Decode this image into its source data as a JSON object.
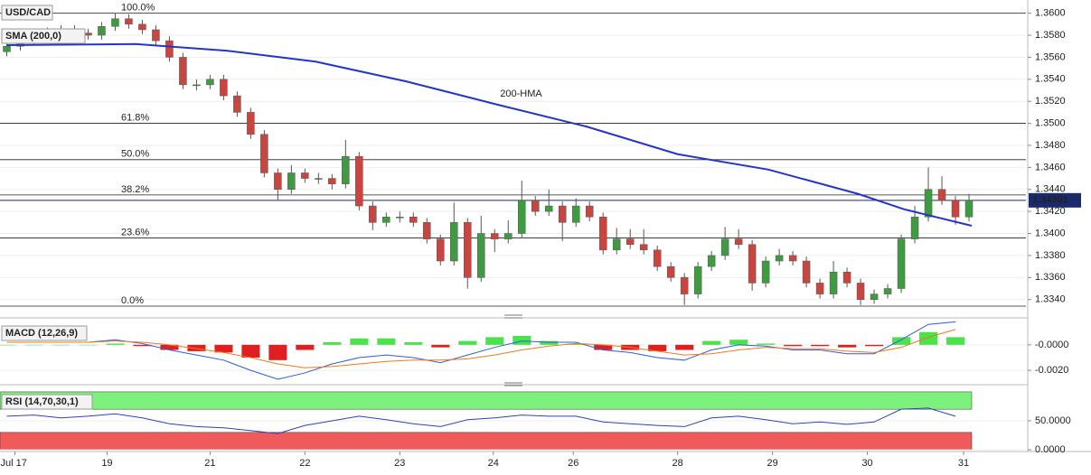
{
  "chart_data": [
    {
      "type": "candlestick",
      "symbol": "USD/CAD",
      "indicator": "SMA (200,0)",
      "up_color": "#3f9b3f",
      "down_color": "#c8463f",
      "ylim": [
        1.3325,
        1.3612
      ],
      "yticks": [
        {
          "value": 1.334,
          "label": "1.3340"
        },
        {
          "value": 1.336,
          "label": "1.3360"
        },
        {
          "value": 1.338,
          "label": "1.3380"
        },
        {
          "value": 1.34,
          "label": "1.3400"
        },
        {
          "value": 1.342,
          "label": "1.3420"
        },
        {
          "value": 1.344,
          "label": "1.3440"
        },
        {
          "value": 1.346,
          "label": "1.3460"
        },
        {
          "value": 1.348,
          "label": "1.3480"
        },
        {
          "value": 1.35,
          "label": "1.3500"
        },
        {
          "value": 1.352,
          "label": "1.3520"
        },
        {
          "value": 1.354,
          "label": "1.3540"
        },
        {
          "value": 1.356,
          "label": "1.3560"
        },
        {
          "value": 1.358,
          "label": "1.3580"
        },
        {
          "value": 1.36,
          "label": "1.3600"
        }
      ],
      "xlim": [
        -0.5,
        75.2
      ],
      "xticks": [
        {
          "value": 0.6,
          "label": "Jul 17"
        },
        {
          "value": 7.4,
          "label": "19"
        },
        {
          "value": 15,
          "label": "21"
        },
        {
          "value": 22,
          "label": "22"
        },
        {
          "value": 29,
          "label": "23"
        },
        {
          "value": 35.9,
          "label": "24"
        },
        {
          "value": 41.8,
          "label": "26"
        },
        {
          "value": 49.5,
          "label": "28"
        },
        {
          "value": 56.5,
          "label": "29"
        },
        {
          "value": 63.5,
          "label": "30"
        },
        {
          "value": 70.6,
          "label": "31"
        }
      ],
      "last": 1.34301,
      "fib_levels": [
        {
          "label": "100.0%",
          "price": 1.36
        },
        {
          "label": "61.8%",
          "price": 1.35
        },
        {
          "label": "50.0%",
          "price": 1.3467
        },
        {
          "label": "38.2%",
          "price": 1.3435
        },
        {
          "label": "23.6%",
          "price": 1.3396
        },
        {
          "label": "0.0%",
          "price": 1.3334
        }
      ],
      "hma": {
        "name": "200-HMA",
        "color": "#2436c8",
        "x": [
          0,
          9.5,
          16.2,
          22.8,
          29.5,
          36.2,
          42.8,
          49.5,
          56.2,
          62.8,
          66.2,
          71.2
        ],
        "values": [
          1.3571,
          1.3572,
          1.3566,
          1.3556,
          1.3538,
          1.3517,
          1.3497,
          1.3472,
          1.3458,
          1.3436,
          1.3422,
          1.3407
        ]
      },
      "candles": [
        [
          1.3565,
          1.3574,
          1.3561,
          1.357
        ],
        [
          1.357,
          1.3579,
          1.3566,
          1.3575
        ],
        [
          1.3575,
          1.3584,
          1.3571,
          1.358
        ],
        [
          1.358,
          1.3587,
          1.3576,
          1.3583
        ],
        [
          1.3583,
          1.3589,
          1.3579,
          1.3585
        ],
        [
          1.3585,
          1.3589,
          1.3578,
          1.3582
        ],
        [
          1.3582,
          1.3586,
          1.3576,
          1.358
        ],
        [
          1.358,
          1.3592,
          1.3576,
          1.3588
        ],
        [
          1.3588,
          1.36,
          1.3584,
          1.3595
        ],
        [
          1.3595,
          1.3599,
          1.3586,
          1.359
        ],
        [
          1.359,
          1.3594,
          1.3581,
          1.3585
        ],
        [
          1.3585,
          1.3589,
          1.3571,
          1.3575
        ],
        [
          1.3575,
          1.3579,
          1.3556,
          1.356
        ],
        [
          1.356,
          1.3564,
          1.3531,
          1.3535
        ],
        [
          1.3535,
          1.354,
          1.353,
          1.3535
        ],
        [
          1.3535,
          1.3544,
          1.3531,
          1.354
        ],
        [
          1.354,
          1.3544,
          1.3521,
          1.3525
        ],
        [
          1.3525,
          1.3529,
          1.3506,
          1.351
        ],
        [
          1.351,
          1.3514,
          1.3486,
          1.349
        ],
        [
          1.349,
          1.3494,
          1.3451,
          1.3455
        ],
        [
          1.3455,
          1.3459,
          1.343,
          1.344
        ],
        [
          1.344,
          1.3462,
          1.3436,
          1.3455
        ],
        [
          1.3455,
          1.3459,
          1.3446,
          1.345
        ],
        [
          1.345,
          1.3455,
          1.3445,
          1.345
        ],
        [
          1.345,
          1.3454,
          1.344,
          1.3445
        ],
        [
          1.3445,
          1.3485,
          1.3441,
          1.347
        ],
        [
          1.347,
          1.3474,
          1.3421,
          1.3425
        ],
        [
          1.3425,
          1.3429,
          1.3403,
          1.341
        ],
        [
          1.341,
          1.3419,
          1.3406,
          1.3415
        ],
        [
          1.3415,
          1.342,
          1.341,
          1.3415
        ],
        [
          1.3415,
          1.3419,
          1.3406,
          1.341
        ],
        [
          1.341,
          1.3414,
          1.3391,
          1.3395
        ],
        [
          1.3395,
          1.3399,
          1.3371,
          1.3375
        ],
        [
          1.3375,
          1.3428,
          1.3371,
          1.341
        ],
        [
          1.341,
          1.3414,
          1.335,
          1.336
        ],
        [
          1.336,
          1.3416,
          1.3356,
          1.34
        ],
        [
          1.34,
          1.3404,
          1.3383,
          1.3395
        ],
        [
          1.3395,
          1.3412,
          1.3391,
          1.34
        ],
        [
          1.34,
          1.3448,
          1.3396,
          1.343
        ],
        [
          1.343,
          1.3434,
          1.3416,
          1.342
        ],
        [
          1.342,
          1.344,
          1.3416,
          1.3425
        ],
        [
          1.3425,
          1.3429,
          1.3393,
          1.341
        ],
        [
          1.341,
          1.3432,
          1.3406,
          1.3425
        ],
        [
          1.3425,
          1.3429,
          1.3411,
          1.3415
        ],
        [
          1.3415,
          1.3419,
          1.3381,
          1.3385
        ],
        [
          1.3385,
          1.3405,
          1.3381,
          1.3395
        ],
        [
          1.3395,
          1.3404,
          1.3386,
          1.339
        ],
        [
          1.339,
          1.3404,
          1.3381,
          1.3385
        ],
        [
          1.3385,
          1.3389,
          1.3366,
          1.337
        ],
        [
          1.337,
          1.3374,
          1.3356,
          1.336
        ],
        [
          1.336,
          1.3364,
          1.3335,
          1.3345
        ],
        [
          1.3345,
          1.3374,
          1.3341,
          1.337
        ],
        [
          1.337,
          1.3384,
          1.3366,
          1.338
        ],
        [
          1.338,
          1.3406,
          1.3376,
          1.3395
        ],
        [
          1.3395,
          1.3404,
          1.3386,
          1.339
        ],
        [
          1.339,
          1.3394,
          1.3348,
          1.3355
        ],
        [
          1.3355,
          1.3379,
          1.3351,
          1.3375
        ],
        [
          1.3375,
          1.3386,
          1.3371,
          1.338
        ],
        [
          1.338,
          1.3384,
          1.3371,
          1.3375
        ],
        [
          1.3375,
          1.3379,
          1.3351,
          1.3355
        ],
        [
          1.3355,
          1.3359,
          1.3341,
          1.3345
        ],
        [
          1.3345,
          1.3375,
          1.3341,
          1.3365
        ],
        [
          1.3365,
          1.3369,
          1.3351,
          1.3355
        ],
        [
          1.3355,
          1.3359,
          1.3335,
          1.334
        ],
        [
          1.334,
          1.3349,
          1.3336,
          1.3345
        ],
        [
          1.3345,
          1.3354,
          1.3341,
          1.335
        ],
        [
          1.335,
          1.3399,
          1.3346,
          1.3395
        ],
        [
          1.3395,
          1.3425,
          1.3391,
          1.3415
        ],
        [
          1.3415,
          1.346,
          1.3411,
          1.344
        ],
        [
          1.344,
          1.3452,
          1.3426,
          1.343
        ],
        [
          1.343,
          1.3434,
          1.3408,
          1.3415
        ],
        [
          1.3415,
          1.3436,
          1.3411,
          1.343
        ]
      ]
    },
    {
      "type": "macd",
      "label": "MACD (12,26,9)",
      "macd_color": "#2f5be0",
      "signal_color": "#f07a1a",
      "up_color": "#4be34b",
      "down_color": "#e02020",
      "ylim": [
        -0.0027,
        0.0019
      ],
      "yticks": [
        {
          "value": 0,
          "label": "-0.0000"
        },
        {
          "value": -0.002,
          "label": "-0.0020"
        }
      ],
      "x": [
        0,
        2,
        4,
        6,
        8,
        10,
        12,
        14,
        16,
        18,
        20,
        22,
        24,
        26,
        28,
        30,
        32,
        34,
        36,
        38,
        40,
        42,
        44,
        46,
        48,
        50,
        52,
        54,
        56,
        58,
        60,
        62,
        64,
        66,
        68,
        70
      ],
      "macd": [
        0.0002,
        0.0002,
        0.0002,
        0.0002,
        0.0004,
        0.0001,
        -0.0004,
        -0.0008,
        -0.0012,
        -0.002,
        -0.0027,
        -0.0022,
        -0.0015,
        -0.001,
        -0.0008,
        -0.001,
        -0.0014,
        -0.0008,
        -0.0002,
        0.0003,
        0.0002,
        0.0002,
        -0.0004,
        -0.0006,
        -0.001,
        -0.0012,
        -0.0004,
        0,
        -0.0001,
        -0.0004,
        -0.0004,
        -0.0007,
        -0.0007,
        0.0004,
        0.0016,
        0.0018
      ],
      "signal": [
        0.0002,
        0.0002,
        0.0002,
        0.0002,
        0.0003,
        0.0002,
        0,
        -0.0003,
        -0.0006,
        -0.001,
        -0.0015,
        -0.0018,
        -0.0017,
        -0.0015,
        -0.0013,
        -0.0012,
        -0.0012,
        -0.0011,
        -0.0008,
        -0.0004,
        -0.0001,
        0.0001,
        0,
        -0.0002,
        -0.0005,
        -0.0008,
        -0.0007,
        -0.0004,
        -0.0002,
        -0.0003,
        -0.0003,
        -0.0005,
        -0.0006,
        -0.0002,
        0.0006,
        0.0012
      ],
      "hist": [
        0,
        0,
        0,
        0,
        0.0001,
        -0.0001,
        -0.0004,
        -0.0005,
        -0.0006,
        -0.001,
        -0.0012,
        -0.0004,
        0.0002,
        0.0005,
        0.0005,
        0.0002,
        -0.0002,
        0.0003,
        0.0006,
        0.0007,
        0.0003,
        0.0001,
        -0.0004,
        -0.0004,
        -0.0005,
        -0.0004,
        0.0003,
        0.0004,
        0.0001,
        -0.0001,
        -0.0001,
        -0.0002,
        -0.0001,
        0.0006,
        0.001,
        0.0006
      ]
    },
    {
      "type": "rsi",
      "label": "RSI (14,70,30,1)",
      "color": "#3140b8",
      "range": [
        0,
        100
      ],
      "upper": 70,
      "lower": 30,
      "upper_color": "#7ef07e",
      "lower_color": "#f05a5a",
      "ylim": [
        -3,
        103
      ],
      "yticks": [
        {
          "value": 50,
          "label": "50.0000"
        },
        {
          "value": 0,
          "label": "0.0000"
        }
      ],
      "x": [
        0,
        2,
        4,
        6,
        8,
        10,
        12,
        14,
        16,
        18,
        20,
        22,
        24,
        26,
        28,
        30,
        32,
        34,
        36,
        38,
        40,
        42,
        44,
        46,
        48,
        50,
        52,
        54,
        56,
        58,
        60,
        62,
        64,
        66,
        68,
        70
      ],
      "values": [
        58,
        60,
        55,
        58,
        62,
        55,
        45,
        40,
        38,
        33,
        28,
        42,
        50,
        58,
        52,
        45,
        40,
        52,
        55,
        60,
        58,
        58,
        48,
        45,
        42,
        40,
        55,
        58,
        52,
        45,
        48,
        44,
        48,
        70,
        72,
        58
      ]
    }
  ]
}
